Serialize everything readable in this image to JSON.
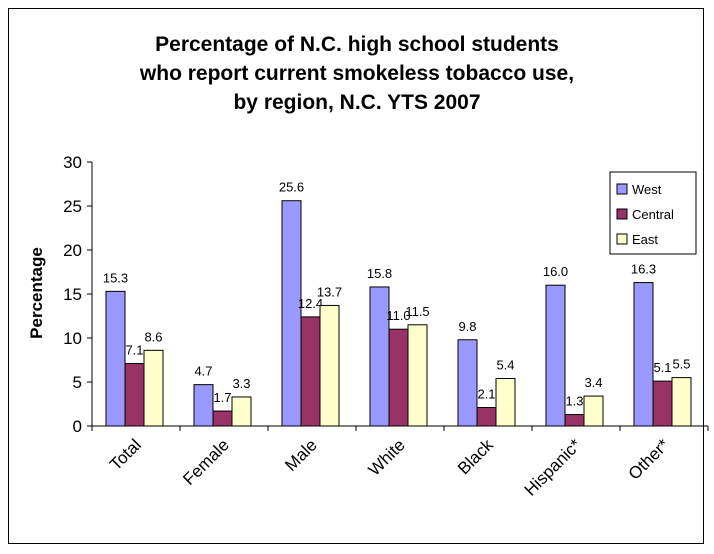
{
  "chart_data": {
    "type": "bar",
    "title_lines": [
      "Percentage of N.C. high school students",
      "who report current smokeless tobacco use,",
      "by region, N.C. YTS 2007"
    ],
    "ylabel": "Percentage",
    "xlabel": "",
    "ylim": [
      0,
      30
    ],
    "yticks": [
      0,
      5,
      10,
      15,
      20,
      25,
      30
    ],
    "grid": false,
    "legend_position": "top-right",
    "categories": [
      "Total",
      "Female",
      "Male",
      "White",
      "Black",
      "Hispanic*",
      "Other*"
    ],
    "series": [
      {
        "name": "West",
        "color": "#9999ff",
        "values": [
          15.3,
          4.7,
          25.6,
          15.8,
          9.8,
          16.0,
          16.3
        ]
      },
      {
        "name": "Central",
        "color": "#993366",
        "values": [
          7.1,
          1.7,
          12.4,
          11.0,
          2.1,
          1.3,
          5.1
        ]
      },
      {
        "name": "East",
        "color": "#ffffcc",
        "values": [
          8.6,
          3.3,
          13.7,
          11.5,
          5.4,
          3.4,
          5.5
        ]
      }
    ]
  }
}
